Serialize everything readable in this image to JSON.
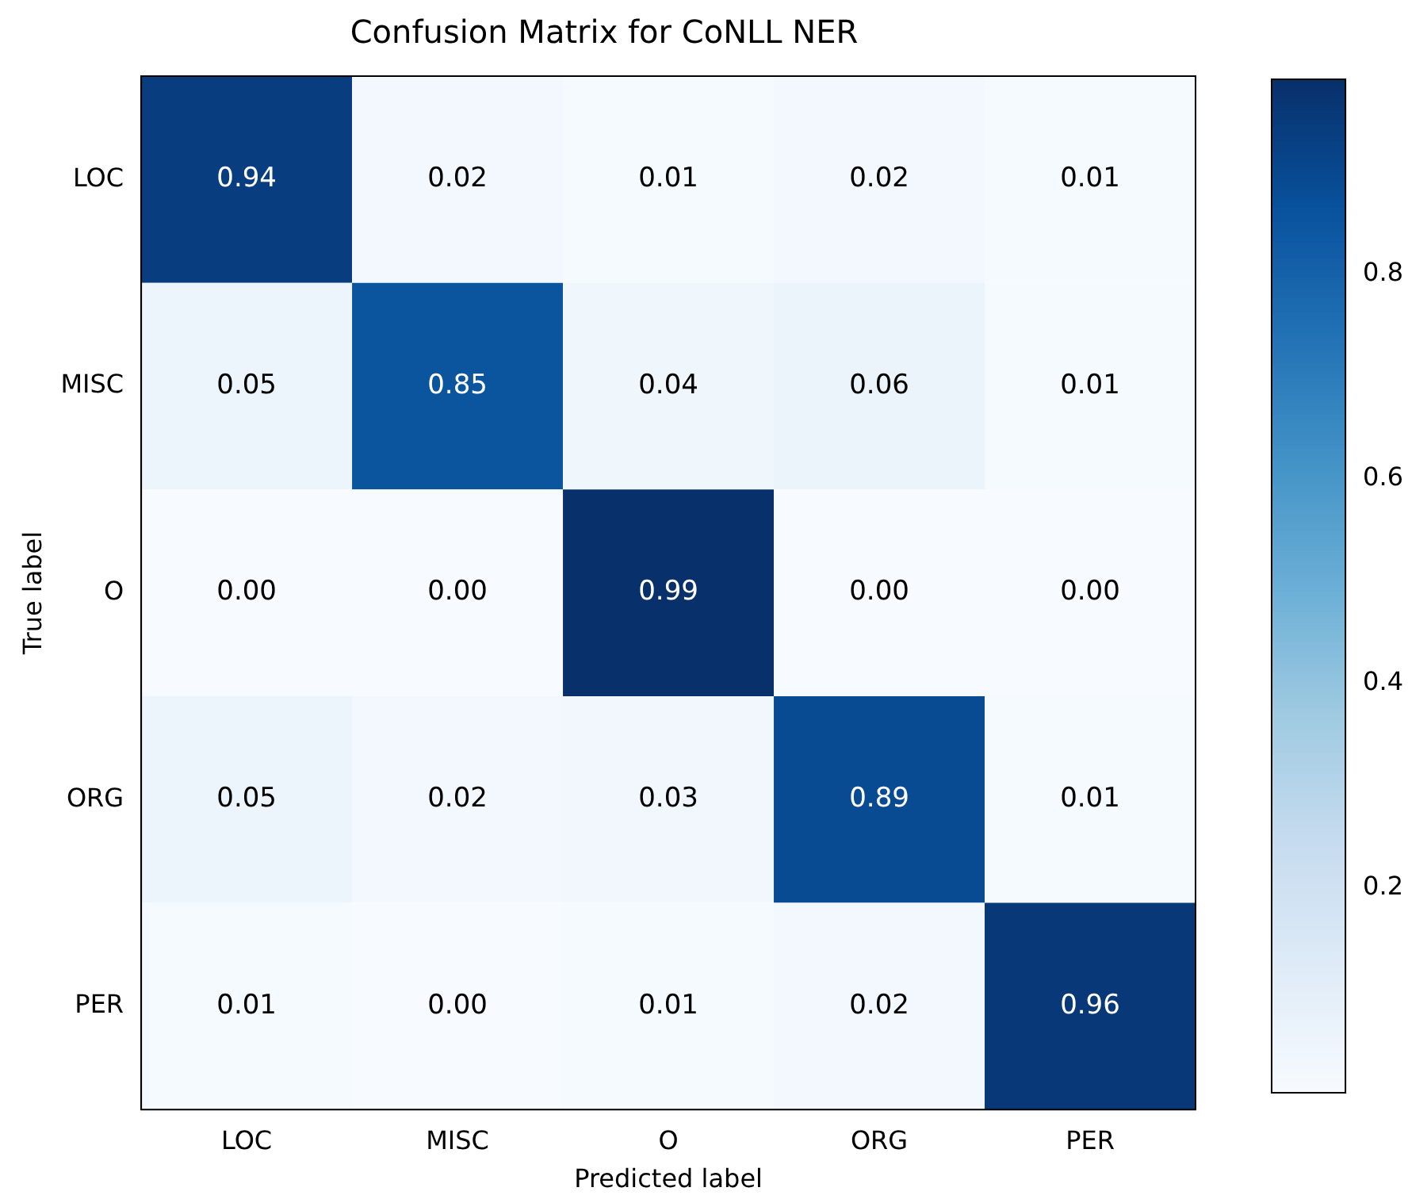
{
  "chart_data": {
    "type": "heatmap",
    "title": "Confusion Matrix for CoNLL NER",
    "xlabel": "Predicted label",
    "ylabel": "True label",
    "categories": [
      "LOC",
      "MISC",
      "O",
      "ORG",
      "PER"
    ],
    "y_categories": [
      "LOC",
      "MISC",
      "O",
      "ORG",
      "PER"
    ],
    "cells": [
      [
        0.94,
        0.02,
        0.01,
        0.02,
        0.01
      ],
      [
        0.05,
        0.85,
        0.04,
        0.06,
        0.01
      ],
      [
        0,
        0,
        0.99,
        0,
        0
      ],
      [
        0.05,
        0.02,
        0.03,
        0.89,
        0.01
      ],
      [
        0.01,
        0,
        0.01,
        0.02,
        0.96
      ]
    ],
    "cell_labels": [
      [
        "0.94",
        "0.02",
        "0.01",
        "0.02",
        "0.01"
      ],
      [
        "0.05",
        "0.85",
        "0.04",
        "0.06",
        "0.01"
      ],
      [
        "0.00",
        "0.00",
        "0.99",
        "0.00",
        "0.00"
      ],
      [
        "0.05",
        "0.02",
        "0.03",
        "0.89",
        "0.01"
      ],
      [
        "0.01",
        "0.00",
        "0.01",
        "0.02",
        "0.96"
      ]
    ],
    "clim": [
      0,
      0.99
    ],
    "cticks": [
      0.2,
      0.4,
      0.6,
      0.8
    ]
  }
}
